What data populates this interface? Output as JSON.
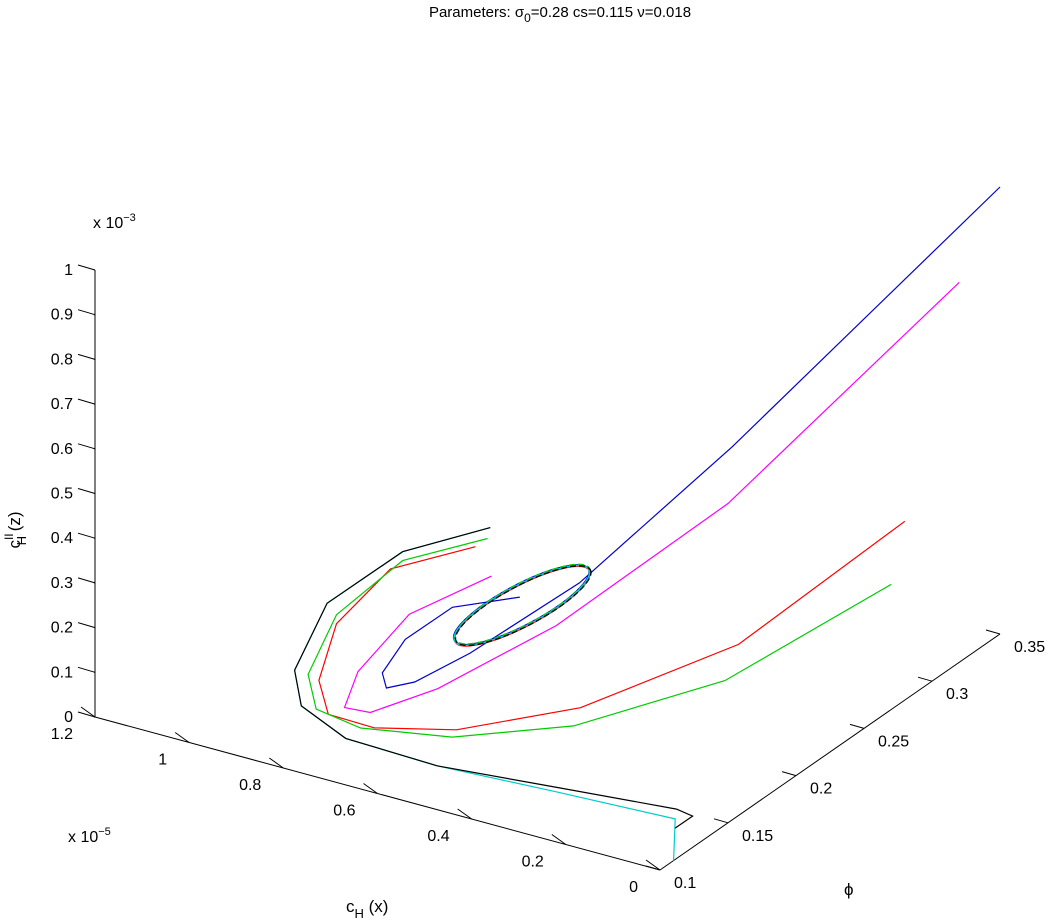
{
  "chart_data": {
    "type": "line",
    "title_prefix": "Parameters: ",
    "title_sigma": "σ",
    "title_sigma_sub": "0",
    "title_rest": "=0.28 cs=0.115 ν=0.018",
    "x_axis": {
      "label_main": "c",
      "label_sub": "H",
      "label_suffix": " (x)",
      "multiplier_base": "x 10",
      "multiplier_exp": "−5",
      "range": [
        0,
        1.2
      ],
      "ticks": [
        "0",
        "0.2",
        "0.4",
        "0.6",
        "0.8",
        "1",
        "1.2"
      ]
    },
    "y_axis": {
      "label_main": "ϕ",
      "range": [
        0.1,
        0.35
      ],
      "ticks": [
        "0.1",
        "0.15",
        "0.2",
        "0.25",
        "0.3",
        "0.35"
      ]
    },
    "z_axis": {
      "label_main": "c",
      "label_sup": "II",
      "label_sub": "H",
      "label_suffix": " (z)",
      "multiplier_base": "x 10",
      "multiplier_exp": "−3",
      "range": [
        0,
        1
      ],
      "ticks": [
        "0",
        "0.1",
        "0.2",
        "0.3",
        "0.4",
        "0.5",
        "0.6",
        "0.7",
        "0.8",
        "0.9",
        "1"
      ]
    },
    "grid": false,
    "series": [
      {
        "color": "#0000cc",
        "x": [
          0.0,
          0.28,
          0.46,
          0.62,
          0.7,
          0.74,
          0.74,
          0.7,
          0.62,
          0.5
        ],
        "y": [
          0.35,
          0.25,
          0.2,
          0.175,
          0.162,
          0.155,
          0.152,
          0.155,
          0.162,
          0.17
        ],
        "z": [
          1.0,
          0.55,
          0.3,
          0.15,
          0.09,
          0.08,
          0.12,
          0.2,
          0.28,
          0.32
        ]
      },
      {
        "color": "#ff00ff",
        "x": [
          0.0,
          0.26,
          0.48,
          0.66,
          0.76,
          0.8,
          0.78,
          0.7,
          0.56
        ],
        "y": [
          0.32,
          0.24,
          0.19,
          0.165,
          0.15,
          0.145,
          0.148,
          0.158,
          0.17
        ],
        "z": [
          0.85,
          0.45,
          0.22,
          0.08,
          0.03,
          0.04,
          0.12,
          0.25,
          0.35
        ]
      },
      {
        "color": "#ff0000",
        "x": [
          0.0,
          0.18,
          0.4,
          0.6,
          0.74,
          0.82,
          0.84,
          0.82,
          0.74,
          0.6
        ],
        "y": [
          0.28,
          0.22,
          0.18,
          0.158,
          0.146,
          0.14,
          0.14,
          0.146,
          0.158,
          0.172
        ],
        "z": [
          0.4,
          0.2,
          0.08,
          0.02,
          0.01,
          0.03,
          0.1,
          0.22,
          0.34,
          0.4
        ]
      },
      {
        "color": "#00cc00",
        "x": [
          0.0,
          0.18,
          0.4,
          0.6,
          0.76,
          0.84,
          0.86,
          0.82,
          0.72,
          0.58
        ],
        "y": [
          0.27,
          0.21,
          0.175,
          0.155,
          0.143,
          0.138,
          0.139,
          0.146,
          0.16,
          0.174
        ],
        "z": [
          0.28,
          0.14,
          0.05,
          0.01,
          0.01,
          0.04,
          0.11,
          0.24,
          0.36,
          0.42
        ]
      },
      {
        "color": "#00cccc",
        "x": [
          0.0,
          0.04,
          0.3,
          0.56,
          0.76,
          0.86,
          0.88,
          0.84,
          0.72,
          0.58
        ],
        "y": [
          0.11,
          0.125,
          0.128,
          0.13,
          0.132,
          0.134,
          0.136,
          0.146,
          0.16,
          0.176
        ],
        "z": [
          0.0,
          0.05,
          0.03,
          0.01,
          0.01,
          0.05,
          0.12,
          0.26,
          0.38,
          0.44
        ]
      },
      {
        "color": "#000000",
        "x": [
          0.02,
          0.0,
          0.04,
          0.3,
          0.56,
          0.76,
          0.86,
          0.88,
          0.84,
          0.72,
          0.58
        ],
        "y": [
          0.118,
          0.124,
          0.126,
          0.128,
          0.13,
          0.132,
          0.134,
          0.136,
          0.146,
          0.16,
          0.176
        ],
        "z": [
          0.05,
          0.07,
          0.07,
          0.04,
          0.01,
          0.01,
          0.05,
          0.12,
          0.26,
          0.38,
          0.44
        ]
      }
    ],
    "limit_cycle_colors": [
      "#0000cc",
      "#ff00ff",
      "#ff0000",
      "#00cc00",
      "#00cccc",
      "#000000"
    ]
  }
}
